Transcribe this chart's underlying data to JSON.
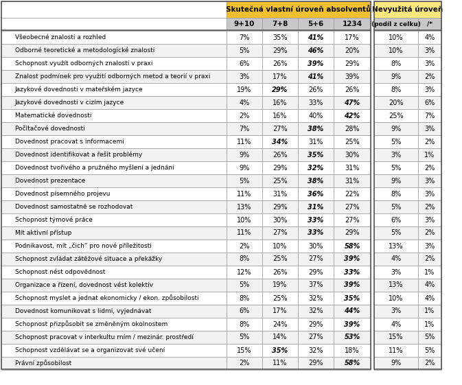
{
  "rows": [
    {
      "label": "Všeobecné znalosti a rozhled",
      "v1": "7%",
      "v2": "35%",
      "v3": "41%",
      "v4": "17%",
      "nv1": "10%",
      "nv2": "4%"
    },
    {
      "label": "Odborné teoretické a metodologické znalosti",
      "v1": "5%",
      "v2": "29%",
      "v3": "46%",
      "v4": "20%",
      "nv1": "10%",
      "nv2": "3%"
    },
    {
      "label": "Schopnost využít odborných znalostí v praxi",
      "v1": "6%",
      "v2": "26%",
      "v3": "39%",
      "v4": "29%",
      "nv1": "8%",
      "nv2": "3%"
    },
    {
      "label": "Znalost podmínek pro využití odborných metod a teorií v praxi",
      "v1": "3%",
      "v2": "17%",
      "v3": "41%",
      "v4": "39%",
      "nv1": "9%",
      "nv2": "2%"
    },
    {
      "label": "Jazykové dovednosti v mateřském jazyce",
      "v1": "19%",
      "v2": "29%",
      "v3": "26%",
      "v4": "26%",
      "nv1": "8%",
      "nv2": "3%"
    },
    {
      "label": "Jazykové dovednosti v cizím jazyce",
      "v1": "4%",
      "v2": "16%",
      "v3": "33%",
      "v4": "47%",
      "nv1": "20%",
      "nv2": "6%"
    },
    {
      "label": "Matematické dovednosti",
      "v1": "2%",
      "v2": "16%",
      "v3": "40%",
      "v4": "42%",
      "nv1": "25%",
      "nv2": "7%"
    },
    {
      "label": "Počîtačové dovednosti",
      "v1": "7%",
      "v2": "27%",
      "v3": "38%",
      "v4": "28%",
      "nv1": "9%",
      "nv2": "3%"
    },
    {
      "label": "Dovednost pracovat s informacemi",
      "v1": "11%",
      "v2": "34%",
      "v3": "31%",
      "v4": "25%",
      "nv1": "5%",
      "nv2": "2%"
    },
    {
      "label": "Dovednost identifikovat a řešit problémy",
      "v1": "9%",
      "v2": "26%",
      "v3": "35%",
      "v4": "30%",
      "nv1": "3%",
      "nv2": "1%"
    },
    {
      "label": "Dovednost tvořivého a pružného myšlení a jednání",
      "v1": "9%",
      "v2": "29%",
      "v3": "32%",
      "v4": "31%",
      "nv1": "5%",
      "nv2": "2%"
    },
    {
      "label": "Dovednost prezentace",
      "v1": "5%",
      "v2": "25%",
      "v3": "38%",
      "v4": "31%",
      "nv1": "9%",
      "nv2": "3%"
    },
    {
      "label": "Dovednost písemného projevu",
      "v1": "11%",
      "v2": "31%",
      "v3": "36%",
      "v4": "22%",
      "nv1": "8%",
      "nv2": "3%"
    },
    {
      "label": "Dovednost samostatně se rozhodovat",
      "v1": "13%",
      "v2": "29%",
      "v3": "31%",
      "v4": "27%",
      "nv1": "5%",
      "nv2": "2%"
    },
    {
      "label": "Schopnost týmové práce",
      "v1": "10%",
      "v2": "30%",
      "v3": "33%",
      "v4": "27%",
      "nv1": "6%",
      "nv2": "3%"
    },
    {
      "label": "Mít aktivní přístup",
      "v1": "11%",
      "v2": "27%",
      "v3": "33%",
      "v4": "29%",
      "nv1": "5%",
      "nv2": "2%"
    },
    {
      "label": "Podnikavost, mít „čich“ pro nové příležitosti",
      "v1": "2%",
      "v2": "10%",
      "v3": "30%",
      "v4": "58%",
      "nv1": "13%",
      "nv2": "3%"
    },
    {
      "label": "Schopnost zvládat zátěžové situace a překážky",
      "v1": "8%",
      "v2": "25%",
      "v3": "27%",
      "v4": "39%",
      "nv1": "4%",
      "nv2": "2%"
    },
    {
      "label": "Schopnost nést odpovědnost",
      "v1": "12%",
      "v2": "26%",
      "v3": "29%",
      "v4": "33%",
      "nv1": "3%",
      "nv2": "1%"
    },
    {
      "label": "Organizace a řízení, dovednost vést kolektiv",
      "v1": "5%",
      "v2": "19%",
      "v3": "37%",
      "v4": "39%",
      "nv1": "13%",
      "nv2": "4%"
    },
    {
      "label": "Schopnost myslet a jednat ekonomicky / ekon. způsobilosti",
      "v1": "8%",
      "v2": "25%",
      "v3": "32%",
      "v4": "35%",
      "nv1": "10%",
      "nv2": "4%"
    },
    {
      "label": "Dovednost komunikovat s lidmi, vyjednávat",
      "v1": "6%",
      "v2": "17%",
      "v3": "32%",
      "v4": "44%",
      "nv1": "3%",
      "nv2": "1%"
    },
    {
      "label": "Schopnost přizpůsobit se změněným okolnostem",
      "v1": "8%",
      "v2": "24%",
      "v3": "29%",
      "v4": "39%",
      "nv1": "4%",
      "nv2": "1%"
    },
    {
      "label": "Schopnost pracovat v interkultu rním / mezinár. prostředí",
      "v1": "5%",
      "v2": "14%",
      "v3": "27%",
      "v4": "53%",
      "nv1": "15%",
      "nv2": "5%"
    },
    {
      "label": "Schopnost vzdělávat se a organizovat své učení",
      "v1": "15%",
      "v2": "35%",
      "v3": "32%",
      "v4": "18%",
      "nv1": "11%",
      "nv2": "5%"
    },
    {
      "label": "Právní způsobilost",
      "v1": "2%",
      "v2": "11%",
      "v3": "29%",
      "v4": "58%",
      "nv1": "9%",
      "nv2": "2%"
    }
  ],
  "col_headers_main": [
    "9+10",
    "7+8",
    "5+6",
    "1234"
  ],
  "col_header_group1": "Skutečná vlastní úroveň absolventů",
  "col_header_group2": "Nevyužitá úroveň",
  "col_header_group2_sub1": "(podíl z celku)",
  "col_header_group2_sub2": "/*",
  "header_bg1": "#F0C030",
  "header_bg2": "#FFE97F",
  "header_bg_sub": "#C8C8C8",
  "row_bg_even": "#FFFFFF",
  "row_bg_odd": "#F2F2F2",
  "border_color": "#999999",
  "text_color": "#000000"
}
